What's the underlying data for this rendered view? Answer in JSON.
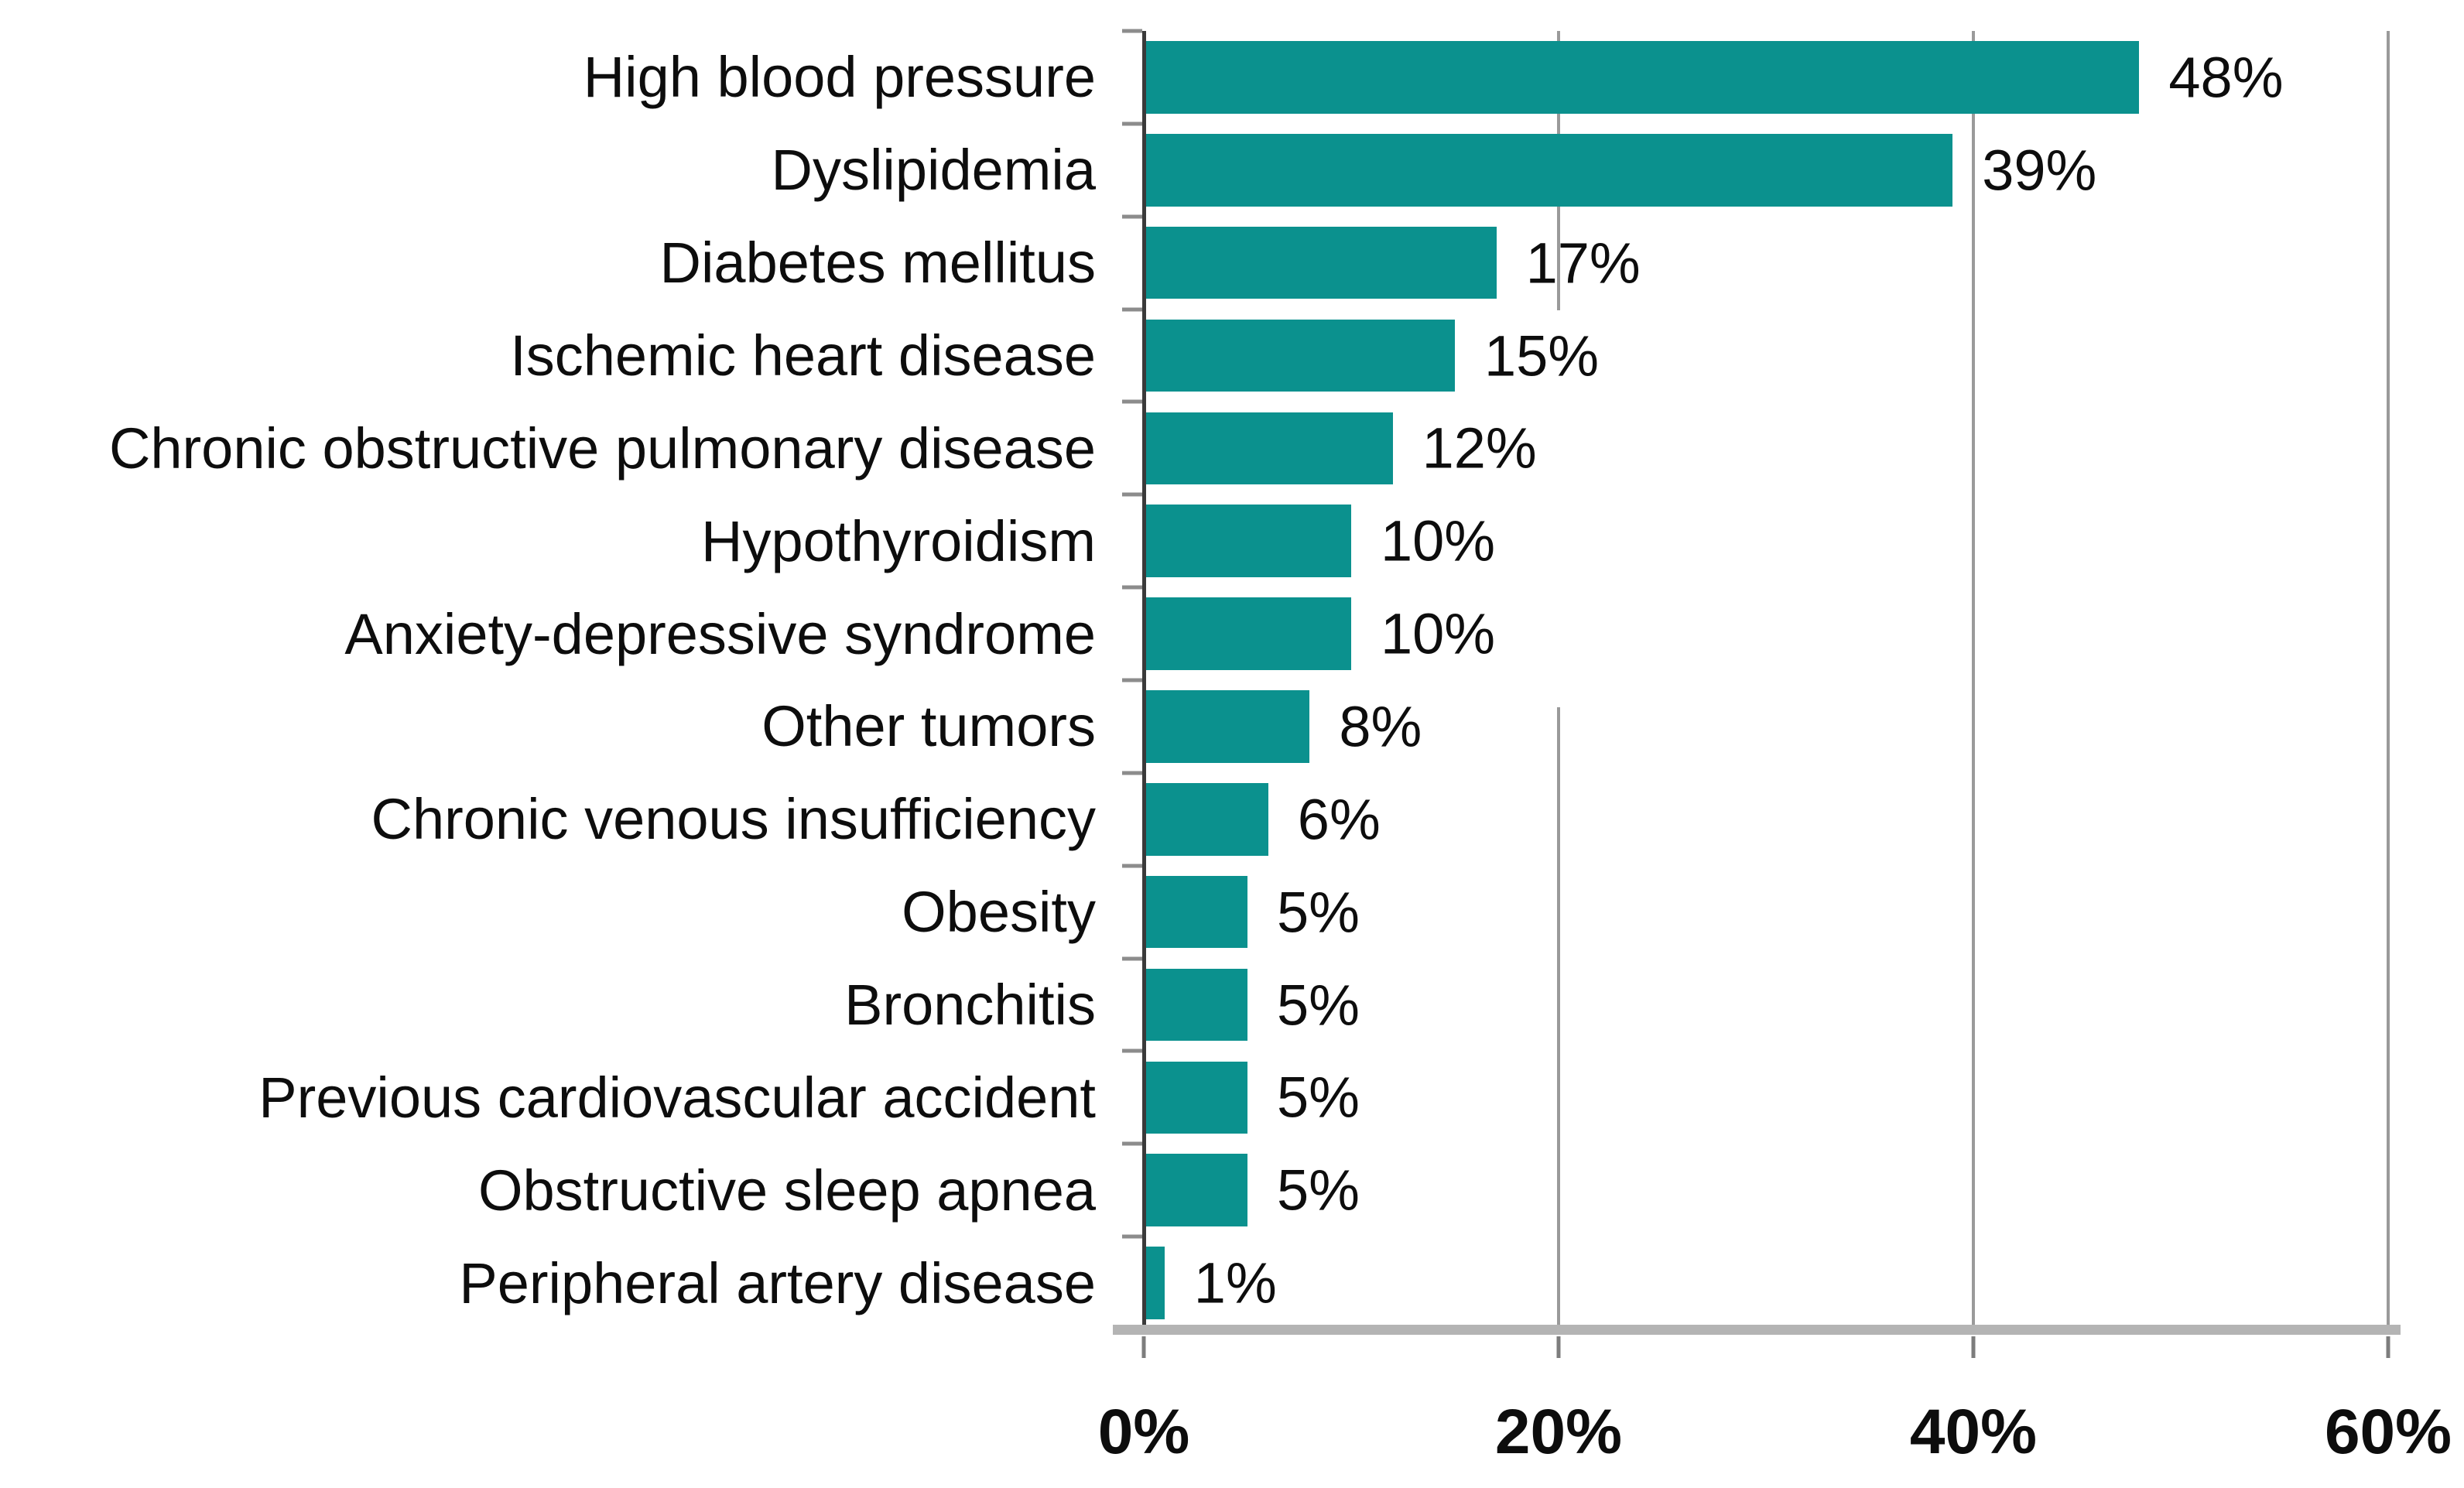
{
  "chart_data": {
    "type": "bar",
    "orientation": "horizontal",
    "title": "",
    "xlabel": "",
    "ylabel": "",
    "categories": [
      "High blood pressure",
      "Dyslipidemia",
      "Diabetes mellitus",
      "Ischemic heart disease",
      "Chronic obstructive pulmonary disease",
      "Hypothyroidism",
      "Anxiety-depressive syndrome",
      "Other tumors",
      "Chronic venous insufficiency",
      "Obesity",
      "Bronchitis",
      "Previous cardiovascular accident",
      "Obstructive sleep apnea",
      "Peripheral artery disease"
    ],
    "values": [
      48,
      39,
      17,
      15,
      12,
      10,
      10,
      8,
      6,
      5,
      5,
      5,
      5,
      1
    ],
    "value_labels": [
      "48%",
      "39%",
      "17%",
      "15%",
      "12%",
      "10%",
      "10%",
      "8%",
      "6%",
      "5%",
      "5%",
      "5%",
      "5%",
      "1%"
    ],
    "x_ticks": [
      0,
      20,
      40,
      60
    ],
    "x_tick_labels": [
      "0%",
      "20%",
      "40%",
      "60%"
    ],
    "xlim": [
      0,
      60
    ],
    "grid": true,
    "legend": false,
    "bar_color": "#0b918e",
    "gridline_color": "#9a9a9a",
    "axis_line_color": "#3a3a3a",
    "baseline_color": "#b4b4b4",
    "text_color": "#0d0d0d"
  }
}
